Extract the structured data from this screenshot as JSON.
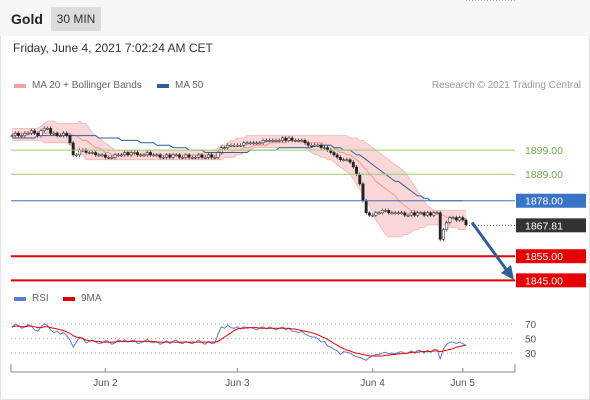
{
  "header": {
    "instrument": "Gold",
    "timeframe": "30 MIN"
  },
  "datetime": "Friday, June 4, 2021 7:02:24 AM CET",
  "legend": {
    "ma20": "MA 20 + Bollinger Bands",
    "ma50": "MA 50",
    "rsi": "RSI",
    "ma9": "9MA",
    "credit": "Research © 2021 Trading Central"
  },
  "colors": {
    "bollinger_fill": "#f9caca",
    "ma20": "#f26c6c",
    "ma50": "#2f5f9a",
    "support_red": "#e60000",
    "resistance_green": "#9acd6f",
    "pivot_blue": "#3b73c6",
    "last_price_box": "#333333",
    "rsi_line": "#5b7fd6",
    "rsi_ma": "#e60000",
    "arrow": "#2f5f9a"
  },
  "chart_data": [
    {
      "type": "candlestick",
      "title": "",
      "xlabel": "",
      "ylabel": "",
      "x_ticks": [
        "Jun 2",
        "Jun 3",
        "Jun 4",
        "Jun 5"
      ],
      "ylim": [
        1841,
        1921
      ],
      "last_price": 1867.81,
      "series": [
        {
          "name": "Price",
          "values": [
            1905,
            1906,
            1905,
            1905,
            1906,
            1906,
            1907,
            1906,
            1905,
            1907,
            1908,
            1908,
            1906,
            1906,
            1905,
            1905,
            1906,
            1905,
            1902,
            1897,
            1897,
            1899,
            1899,
            1898,
            1898,
            1898,
            1897,
            1897,
            1897,
            1896,
            1896,
            1896,
            1897,
            1897,
            1897,
            1898,
            1897,
            1898,
            1898,
            1897,
            1897,
            1897,
            1898,
            1897,
            1897,
            1897,
            1896,
            1896,
            1897,
            1896,
            1897,
            1897,
            1896,
            1896,
            1897,
            1896,
            1896,
            1896,
            1897,
            1896,
            1896,
            1897,
            1896,
            1896,
            1898,
            1900,
            1900,
            1901,
            1901,
            1901,
            1901,
            1901,
            1902,
            1902,
            1902,
            1902,
            1902,
            1902,
            1903,
            1903,
            1903,
            1903,
            1903,
            1903,
            1904,
            1903,
            1904,
            1903,
            1903,
            1903,
            1903,
            1902,
            1901,
            1901,
            1901,
            1901,
            1900,
            1900,
            1899,
            1898,
            1897,
            1896,
            1895,
            1895,
            1895,
            1894,
            1892,
            1889,
            1885,
            1878,
            1873,
            1872,
            1872,
            1873,
            1873,
            1874,
            1874,
            1873,
            1873,
            1873,
            1873,
            1873,
            1872,
            1872,
            1873,
            1872,
            1873,
            1873,
            1872,
            1873,
            1872,
            1873,
            1873,
            1862,
            1866,
            1869,
            1871,
            1871,
            1870,
            1871,
            1870,
            1868
          ]
        },
        {
          "name": "MA 20",
          "values": [
            1906,
            1906,
            1906,
            1906,
            1906,
            1906,
            1906,
            1906,
            1906,
            1906,
            1906,
            1906,
            1906,
            1906,
            1906,
            1906,
            1906,
            1906,
            1906,
            1905,
            1905,
            1904,
            1903,
            1903,
            1902,
            1901,
            1900,
            1900,
            1899,
            1898,
            1898,
            1897,
            1897,
            1897,
            1897,
            1897,
            1897,
            1897,
            1897,
            1897,
            1897,
            1897,
            1897,
            1897,
            1897,
            1897,
            1897,
            1897,
            1897,
            1897,
            1897,
            1897,
            1897,
            1897,
            1897,
            1897,
            1897,
            1897,
            1897,
            1897,
            1897,
            1897,
            1897,
            1897,
            1897,
            1897,
            1898,
            1898,
            1898,
            1899,
            1899,
            1899,
            1900,
            1900,
            1900,
            1901,
            1901,
            1901,
            1901,
            1901,
            1902,
            1902,
            1902,
            1902,
            1902,
            1902,
            1903,
            1903,
            1903,
            1903,
            1903,
            1903,
            1902,
            1902,
            1902,
            1902,
            1902,
            1901,
            1901,
            1901,
            1900,
            1899,
            1898,
            1898,
            1897,
            1897,
            1896,
            1895,
            1894,
            1892,
            1891,
            1889,
            1888,
            1886,
            1885,
            1884,
            1883,
            1882,
            1881,
            1880,
            1878,
            1877,
            1876,
            1875,
            1874,
            1874,
            1873,
            1873,
            1873,
            1873,
            1873,
            1873,
            1873,
            1872,
            1872,
            1871,
            1871,
            1871,
            1871,
            1871,
            1871,
            1870
          ]
        },
        {
          "name": "MA 50",
          "values": [
            1904,
            1904,
            1904,
            1904,
            1904,
            1904,
            1904,
            1904,
            1905,
            1905,
            1905,
            1905,
            1905,
            1905,
            1905,
            1905,
            1905,
            1905,
            1905,
            1905,
            1905,
            1905,
            1905,
            1905,
            1905,
            1905,
            1905,
            1904,
            1904,
            1904,
            1904,
            1904,
            1904,
            1904,
            1903,
            1903,
            1903,
            1903,
            1903,
            1903,
            1902,
            1902,
            1902,
            1902,
            1902,
            1901,
            1901,
            1901,
            1901,
            1901,
            1900,
            1900,
            1900,
            1900,
            1900,
            1899,
            1899,
            1899,
            1899,
            1899,
            1898,
            1898,
            1898,
            1898,
            1898,
            1898,
            1898,
            1898,
            1898,
            1898,
            1898,
            1898,
            1898,
            1898,
            1899,
            1899,
            1899,
            1899,
            1899,
            1899,
            1899,
            1899,
            1899,
            1900,
            1900,
            1900,
            1900,
            1900,
            1900,
            1900,
            1900,
            1900,
            1900,
            1900,
            1901,
            1901,
            1901,
            1901,
            1901,
            1901,
            1900,
            1900,
            1900,
            1899,
            1899,
            1899,
            1898,
            1897,
            1897,
            1896,
            1895,
            1894,
            1893,
            1892,
            1891,
            1890,
            1889,
            1888,
            1887,
            1886,
            1886,
            1885,
            1884,
            1883,
            1882,
            1881,
            1880,
            1880,
            1879,
            1879,
            1878,
            1878,
            1878,
            1878,
            1878,
            1878,
            1878,
            1878,
            1878,
            1878,
            1878
          ]
        },
        {
          "name": "Bollinger Upper",
          "values": [
            1908,
            1908,
            1908,
            1908,
            1908,
            1908,
            1908,
            1908,
            1908,
            1909,
            1910,
            1911,
            1911,
            1911,
            1910,
            1910,
            1910,
            1910,
            1910,
            1910,
            1910,
            1911,
            1910,
            1910,
            1908,
            1906,
            1905,
            1904,
            1903,
            1902,
            1901,
            1900,
            1899,
            1899,
            1899,
            1899,
            1899,
            1899,
            1899,
            1899,
            1899,
            1899,
            1899,
            1899,
            1899,
            1899,
            1899,
            1899,
            1899,
            1899,
            1899,
            1899,
            1899,
            1899,
            1899,
            1899,
            1899,
            1899,
            1899,
            1899,
            1899,
            1899,
            1899,
            1899,
            1900,
            1901,
            1901,
            1902,
            1903,
            1903,
            1904,
            1904,
            1904,
            1905,
            1905,
            1905,
            1905,
            1905,
            1905,
            1905,
            1905,
            1905,
            1905,
            1905,
            1905,
            1905,
            1905,
            1905,
            1905,
            1905,
            1905,
            1905,
            1905,
            1905,
            1905,
            1905,
            1905,
            1905,
            1905,
            1905,
            1905,
            1905,
            1905,
            1905,
            1905,
            1904,
            1904,
            1904,
            1903,
            1903,
            1902,
            1901,
            1900,
            1899,
            1898,
            1897,
            1896,
            1895,
            1894,
            1893,
            1892,
            1891,
            1890,
            1888,
            1886,
            1884,
            1882,
            1880,
            1878,
            1876,
            1875,
            1874,
            1874,
            1874,
            1874,
            1874,
            1874,
            1874,
            1874,
            1874,
            1874,
            1874
          ]
        },
        {
          "name": "Bollinger Lower",
          "values": [
            1903,
            1903,
            1903,
            1903,
            1903,
            1903,
            1903,
            1903,
            1903,
            1903,
            1902,
            1902,
            1902,
            1902,
            1902,
            1902,
            1902,
            1902,
            1901,
            1900,
            1899,
            1898,
            1897,
            1895,
            1895,
            1895,
            1895,
            1895,
            1895,
            1895,
            1895,
            1895,
            1895,
            1895,
            1895,
            1895,
            1895,
            1895,
            1895,
            1895,
            1895,
            1895,
            1895,
            1895,
            1895,
            1895,
            1895,
            1895,
            1895,
            1895,
            1895,
            1895,
            1895,
            1895,
            1895,
            1895,
            1895,
            1895,
            1895,
            1895,
            1895,
            1895,
            1895,
            1895,
            1895,
            1895,
            1896,
            1896,
            1896,
            1896,
            1897,
            1897,
            1898,
            1898,
            1899,
            1900,
            1900,
            1900,
            1900,
            1900,
            1900,
            1900,
            1900,
            1900,
            1900,
            1900,
            1900,
            1900,
            1900,
            1900,
            1900,
            1900,
            1899,
            1898,
            1897,
            1897,
            1896,
            1896,
            1895,
            1895,
            1894,
            1893,
            1892,
            1891,
            1890,
            1889,
            1887,
            1885,
            1883,
            1880,
            1878,
            1876,
            1873,
            1870,
            1868,
            1866,
            1864,
            1863,
            1863,
            1863,
            1863,
            1863,
            1864,
            1864,
            1865,
            1866,
            1866,
            1867,
            1867,
            1868,
            1868,
            1868,
            1868,
            1868,
            1868,
            1868,
            1867,
            1867,
            1867,
            1866,
            1866,
            1866
          ]
        }
      ],
      "levels": [
        {
          "label": "1899.00",
          "value": 1899,
          "kind": "resistance"
        },
        {
          "label": "1889.00",
          "value": 1889,
          "kind": "resistance"
        },
        {
          "label": "1878.00",
          "value": 1878,
          "kind": "pivot"
        },
        {
          "label": "1855.00",
          "value": 1855,
          "kind": "support"
        },
        {
          "label": "1845.00",
          "value": 1845,
          "kind": "support"
        }
      ],
      "last_price_label": "1867.81",
      "forecast_arrow": {
        "from": 1869,
        "to": 1846,
        "direction": "down"
      }
    },
    {
      "type": "line",
      "title": "",
      "xlabel": "",
      "ylabel": "",
      "x_ticks": [
        "Jun 2",
        "Jun 3",
        "Jun 4",
        "Jun 5"
      ],
      "y_ticks": [
        30,
        50,
        70
      ],
      "ylim": [
        15,
        85
      ],
      "series": [
        {
          "name": "RSI",
          "values": [
            65,
            70,
            68,
            64,
            66,
            69,
            67,
            62,
            60,
            66,
            70,
            68,
            62,
            58,
            60,
            56,
            58,
            54,
            48,
            38,
            45,
            52,
            50,
            44,
            46,
            48,
            45,
            43,
            44,
            47,
            46,
            42,
            44,
            48,
            46,
            48,
            45,
            47,
            48,
            43,
            44,
            46,
            49,
            45,
            44,
            46,
            42,
            44,
            47,
            43,
            46,
            48,
            44,
            43,
            46,
            44,
            43,
            45,
            48,
            44,
            42,
            46,
            43,
            44,
            56,
            66,
            64,
            68,
            65,
            64,
            66,
            63,
            66,
            64,
            65,
            64,
            62,
            65,
            66,
            63,
            66,
            64,
            62,
            64,
            66,
            62,
            64,
            60,
            60,
            58,
            60,
            56,
            54,
            52,
            52,
            50,
            45,
            46,
            40,
            38,
            35,
            33,
            28,
            32,
            31,
            30,
            27,
            25,
            24,
            22,
            20,
            24,
            26,
            28,
            28,
            30,
            31,
            29,
            30,
            29,
            31,
            32,
            29,
            30,
            33,
            30,
            34,
            33,
            30,
            34,
            31,
            35,
            35,
            22,
            36,
            42,
            45,
            45,
            43,
            45,
            43,
            40
          ]
        },
        {
          "name": "9MA",
          "values": [
            66,
            67,
            67,
            66,
            66,
            67,
            67,
            66,
            65,
            65,
            66,
            66,
            65,
            64,
            63,
            62,
            61,
            59,
            57,
            54,
            52,
            51,
            50,
            48,
            47,
            47,
            46,
            46,
            45,
            45,
            45,
            45,
            45,
            46,
            46,
            46,
            46,
            46,
            46,
            46,
            46,
            46,
            46,
            46,
            46,
            45,
            45,
            45,
            45,
            45,
            45,
            45,
            45,
            45,
            45,
            45,
            45,
            45,
            45,
            45,
            45,
            45,
            45,
            45,
            46,
            49,
            52,
            55,
            58,
            61,
            63,
            64,
            64,
            65,
            65,
            65,
            65,
            64,
            64,
            64,
            64,
            64,
            64,
            64,
            64,
            64,
            64,
            63,
            63,
            62,
            61,
            60,
            59,
            58,
            57,
            55,
            53,
            51,
            49,
            46,
            43,
            41,
            38,
            36,
            34,
            33,
            31,
            30,
            29,
            28,
            27,
            26,
            26,
            26,
            26,
            26,
            27,
            27,
            28,
            28,
            29,
            29,
            30,
            30,
            31,
            31,
            31,
            32,
            32,
            32,
            32,
            33,
            33,
            32,
            33,
            34,
            35,
            36,
            38,
            39,
            40,
            41
          ]
        }
      ]
    }
  ]
}
